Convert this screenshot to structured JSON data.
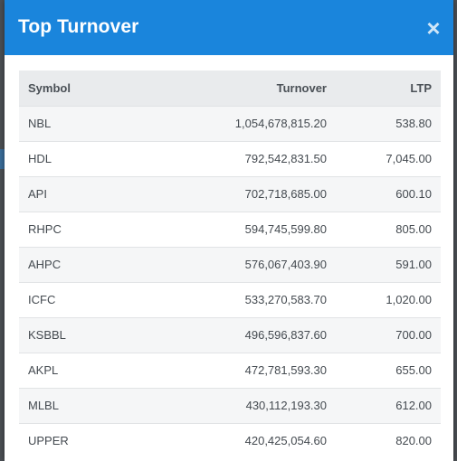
{
  "modal": {
    "title": "Top Turnover",
    "close_label": "×"
  },
  "table": {
    "columns": [
      "Symbol",
      "Turnover",
      "LTP"
    ],
    "rows": [
      {
        "symbol": "NBL",
        "turnover": "1,054,678,815.20",
        "ltp": "538.80"
      },
      {
        "symbol": "HDL",
        "turnover": "792,542,831.50",
        "ltp": "7,045.00"
      },
      {
        "symbol": "API",
        "turnover": "702,718,685.00",
        "ltp": "600.10"
      },
      {
        "symbol": "RHPC",
        "turnover": "594,745,599.80",
        "ltp": "805.00"
      },
      {
        "symbol": "AHPC",
        "turnover": "576,067,403.90",
        "ltp": "591.00"
      },
      {
        "symbol": "ICFC",
        "turnover": "533,270,583.70",
        "ltp": "1,020.00"
      },
      {
        "symbol": "KSBBL",
        "turnover": "496,596,837.60",
        "ltp": "700.00"
      },
      {
        "symbol": "AKPL",
        "turnover": "472,781,593.30",
        "ltp": "655.00"
      },
      {
        "symbol": "MLBL",
        "turnover": "430,112,193.30",
        "ltp": "612.00"
      },
      {
        "symbol": "UPPER",
        "turnover": "420,425,054.60",
        "ltp": "820.00"
      }
    ]
  },
  "colors": {
    "header": "#1a85dc",
    "table_head": "#e9ebed",
    "row_odd": "#f5f6f7"
  }
}
